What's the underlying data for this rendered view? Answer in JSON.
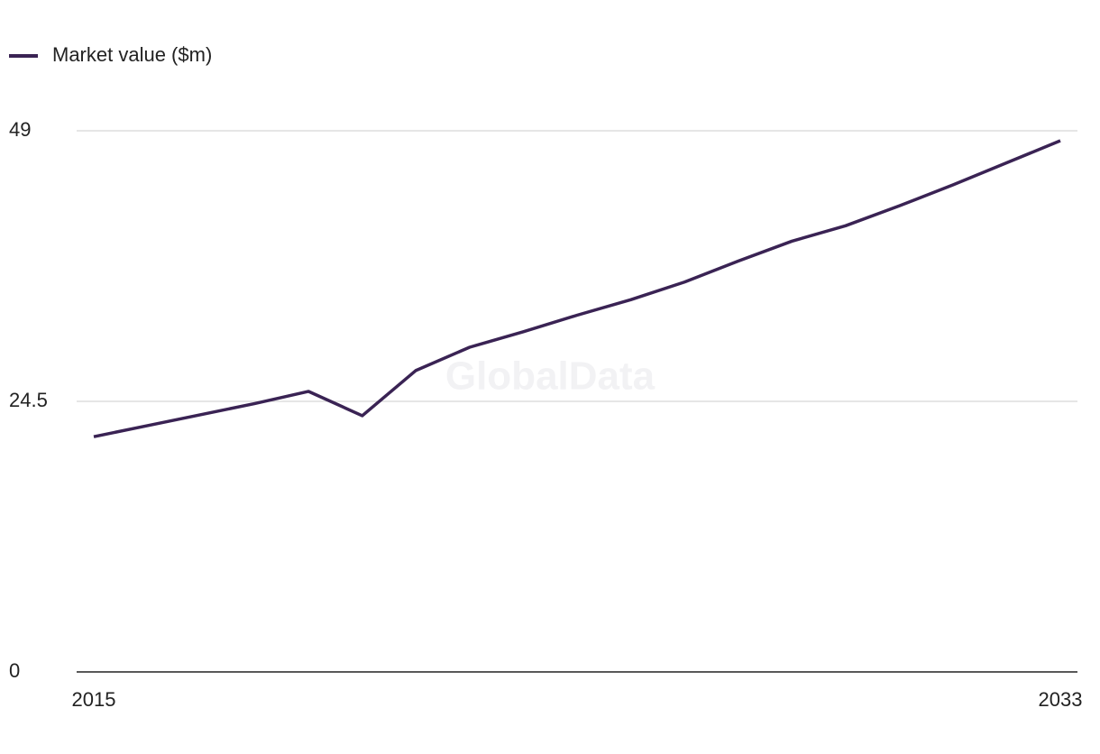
{
  "chart_data": {
    "type": "line",
    "watermark": "GlobalData",
    "x": [
      2015,
      2016,
      2017,
      2018,
      2019,
      2020,
      2021,
      2022,
      2023,
      2024,
      2025,
      2026,
      2027,
      2028,
      2029,
      2030,
      2031,
      2032,
      2033
    ],
    "series": [
      {
        "name": "Market value ($m)",
        "color": "#3a2354",
        "values": [
          21.3,
          22.3,
          23.3,
          24.3,
          25.4,
          23.2,
          27.3,
          29.4,
          30.8,
          32.3,
          33.7,
          35.3,
          37.2,
          39.0,
          40.4,
          42.2,
          44.1,
          46.1,
          48.1
        ]
      }
    ],
    "xlim": [
      2015,
      2033
    ],
    "xticks": [
      2015,
      2033
    ],
    "ylim": [
      0,
      49
    ],
    "yticks": [
      0,
      24.5,
      49
    ],
    "grid": true,
    "legend": "top-left"
  }
}
